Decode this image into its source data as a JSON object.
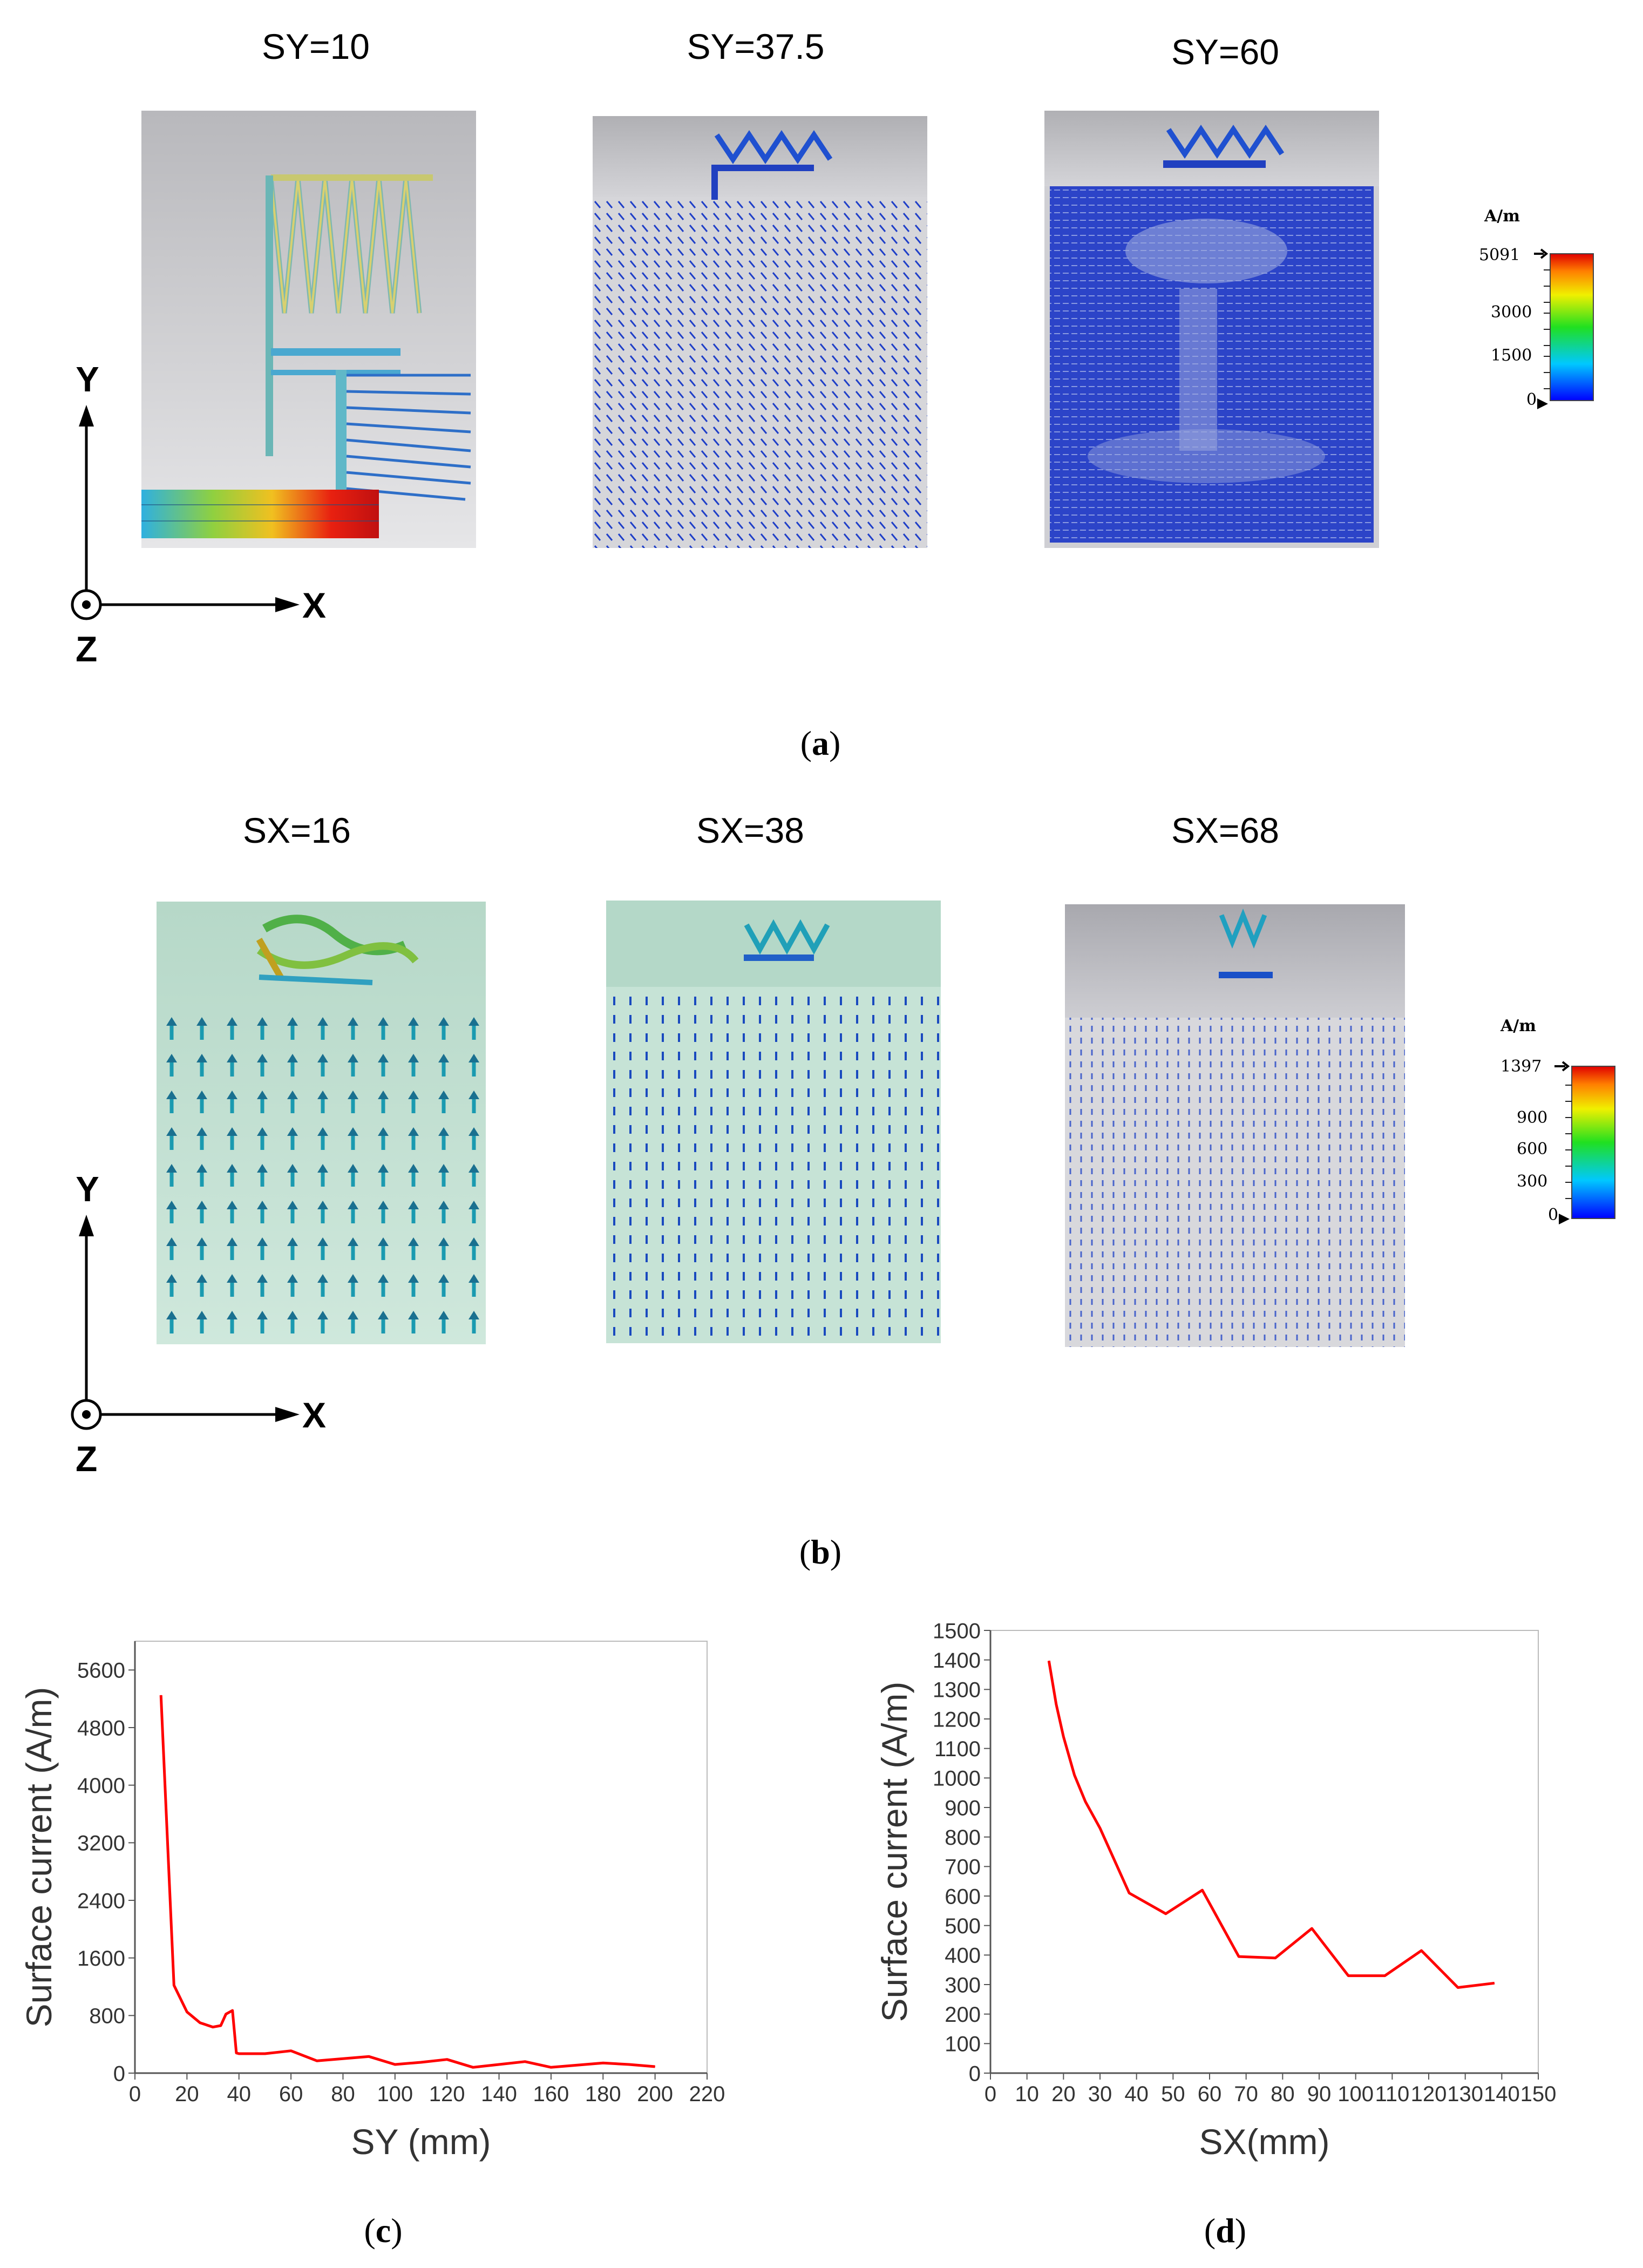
{
  "panel_a": {
    "caption": "a",
    "titles": [
      "SY=10",
      "SY=37.5",
      "SY=60"
    ],
    "legend": {
      "unit": "A/m",
      "ticks": [
        "5091",
        "3000",
        "1500",
        "0"
      ]
    },
    "axes": {
      "y": "Y",
      "x": "X",
      "z": "Z"
    }
  },
  "panel_b": {
    "caption": "b",
    "titles": [
      "SX=16",
      "SX=38",
      "SX=68"
    ],
    "legend": {
      "unit": "A/m",
      "ticks": [
        "1397",
        "900",
        "600",
        "300",
        "0"
      ]
    },
    "axes": {
      "y": "Y",
      "x": "X",
      "z": "Z"
    }
  },
  "colors": {
    "field_bg_gray": "#c6c6c6",
    "field_bg_green": "#c6e3d6",
    "arrow_blue": "#1f3fc8",
    "line_red": "#ff0000"
  },
  "chart_data": [
    {
      "caption": "c",
      "type": "line",
      "title": "",
      "xlabel": "SY (mm)",
      "ylabel": "Surface current (A/m)",
      "xlim": [
        0,
        220
      ],
      "ylim": [
        0,
        6000
      ],
      "xticks": [
        0,
        20,
        40,
        60,
        80,
        100,
        120,
        140,
        160,
        180,
        200,
        220
      ],
      "yticks": [
        0,
        800,
        1600,
        2400,
        3200,
        4000,
        4800,
        5600
      ],
      "series": [
        {
          "name": "Surface current",
          "color": "#ff0000",
          "x": [
            10,
            15,
            20,
            25,
            30,
            33,
            35,
            37.5,
            39,
            40,
            50,
            60,
            70,
            80,
            90,
            100,
            110,
            120,
            130,
            140,
            150,
            160,
            170,
            180,
            190,
            200
          ],
          "y": [
            5250,
            1220,
            850,
            700,
            640,
            660,
            820,
            870,
            280,
            270,
            270,
            310,
            170,
            200,
            230,
            120,
            150,
            190,
            80,
            120,
            160,
            80,
            110,
            140,
            120,
            90
          ]
        }
      ]
    },
    {
      "caption": "d",
      "type": "line",
      "title": "",
      "xlabel": "SX(mm)",
      "ylabel": "Surface current (A/m)",
      "xlim": [
        0,
        150
      ],
      "ylim": [
        0,
        1500
      ],
      "xticks": [
        0,
        10,
        20,
        30,
        40,
        50,
        60,
        70,
        80,
        90,
        100,
        110,
        120,
        130,
        140,
        150
      ],
      "yticks": [
        0,
        100,
        200,
        300,
        400,
        500,
        600,
        700,
        800,
        900,
        1000,
        1100,
        1200,
        1300,
        1400,
        1500
      ],
      "series": [
        {
          "name": "Surface current",
          "color": "#ff0000",
          "x": [
            16,
            18,
            20,
            23,
            26,
            30,
            38,
            48,
            58,
            68,
            78,
            88,
            98,
            108,
            118,
            128,
            138
          ],
          "y": [
            1397,
            1250,
            1140,
            1010,
            920,
            830,
            610,
            540,
            620,
            395,
            390,
            490,
            330,
            330,
            415,
            290,
            305
          ]
        }
      ]
    }
  ]
}
